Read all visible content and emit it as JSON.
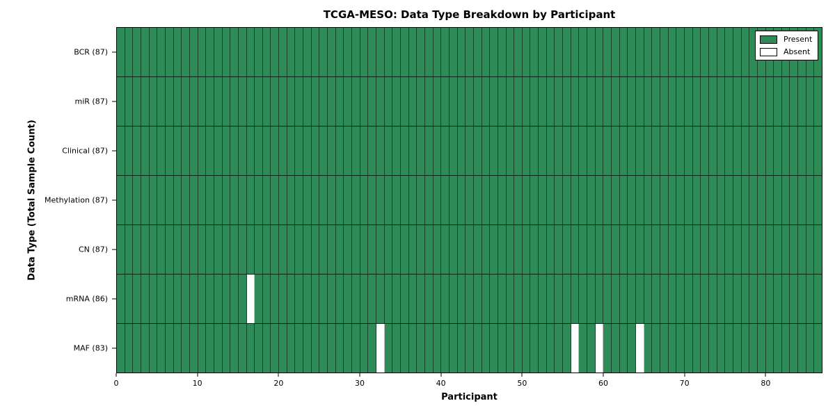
{
  "chart_data": {
    "type": "heatmap",
    "title": "TCGA-MESO: Data Type Breakdown by Participant",
    "xlabel": "Participant",
    "ylabel": "Data Type (Total Sample Count)",
    "x_ticks": [
      0,
      10,
      20,
      30,
      40,
      50,
      60,
      70,
      80
    ],
    "xlim": [
      0,
      87
    ],
    "n_participants": 87,
    "categories": [
      "BCR (87)",
      "miR (87)",
      "Clinical (87)",
      "Methylation (87)",
      "CN (87)",
      "mRNA (86)",
      "MAF (83)"
    ],
    "rows": [
      {
        "label": "BCR (87)",
        "data_type": "BCR",
        "present_count": 87,
        "absent_participants": []
      },
      {
        "label": "miR (87)",
        "data_type": "miR",
        "present_count": 87,
        "absent_participants": []
      },
      {
        "label": "Clinical (87)",
        "data_type": "Clinical",
        "present_count": 87,
        "absent_participants": []
      },
      {
        "label": "Methylation (87)",
        "data_type": "Methylation",
        "present_count": 87,
        "absent_participants": []
      },
      {
        "label": "CN (87)",
        "data_type": "CN",
        "present_count": 87,
        "absent_participants": []
      },
      {
        "label": "mRNA (86)",
        "data_type": "mRNA",
        "present_count": 86,
        "absent_participants": [
          16
        ]
      },
      {
        "label": "MAF (83)",
        "data_type": "MAF",
        "present_count": 83,
        "absent_participants": [
          32,
          56,
          59,
          64
        ]
      }
    ],
    "legend": [
      {
        "label": "Present",
        "color": "#2E8B57"
      },
      {
        "label": "Absent",
        "color": "#FFFFFF"
      }
    ],
    "legend_position": "upper right",
    "grid": false,
    "colors": {
      "present": "#2E8B57",
      "absent": "#FFFFFF"
    }
  }
}
